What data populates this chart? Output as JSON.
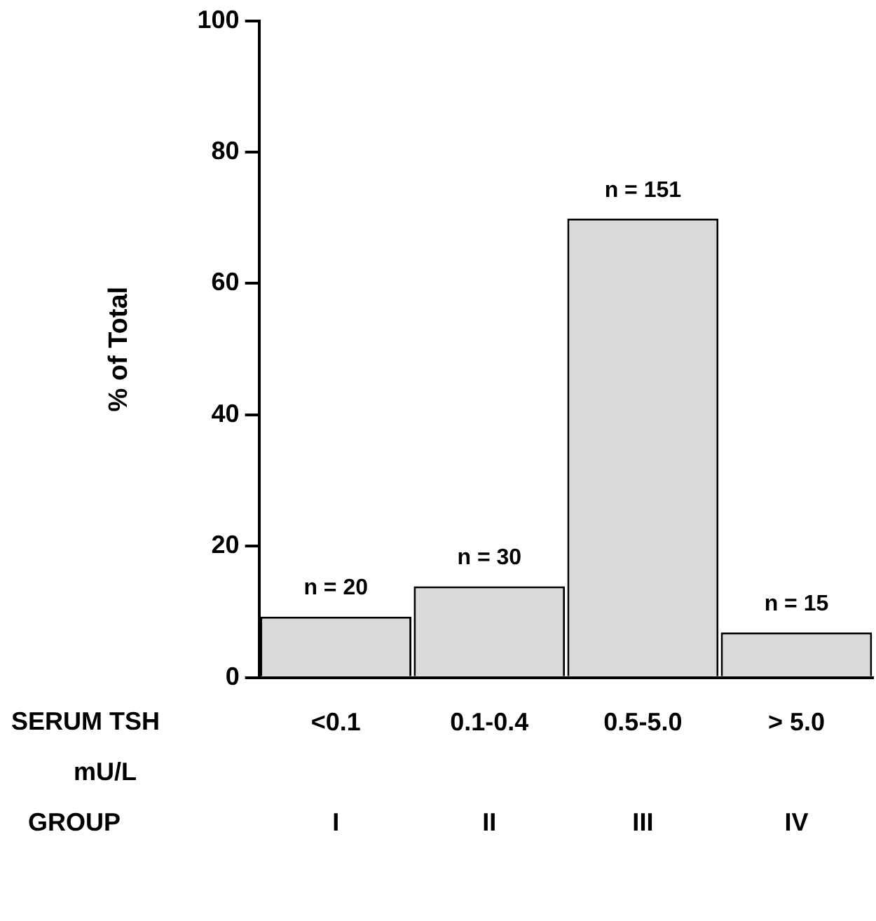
{
  "chart_data": {
    "type": "bar",
    "ylabel": "% of Total",
    "xlabel": "SERUM TSH mU/L",
    "categories": [
      "<0.1",
      "0.1-0.4",
      "0.5-5.0",
      "> 5.0"
    ],
    "values": [
      9.3,
      13.9,
      69.9,
      6.9
    ],
    "color": "#d9d9d9",
    "ylim": [
      0,
      100
    ],
    "yticks": [
      0,
      20,
      40,
      60,
      80,
      100
    ],
    "grid": false,
    "legend": false,
    "annotations": [
      {
        "text": "n = 20",
        "x": "<0.1",
        "y": 9.3
      },
      {
        "text": "n = 30",
        "x": "0.1-0.4",
        "y": 13.9
      },
      {
        "text": "n = 151",
        "x": "0.5-5.0",
        "y": 69.9
      },
      {
        "text": "n = 15",
        "x": "> 5.0",
        "y": 6.9
      },
      "GROUP",
      "I",
      "II",
      "III",
      "IV"
    ]
  }
}
